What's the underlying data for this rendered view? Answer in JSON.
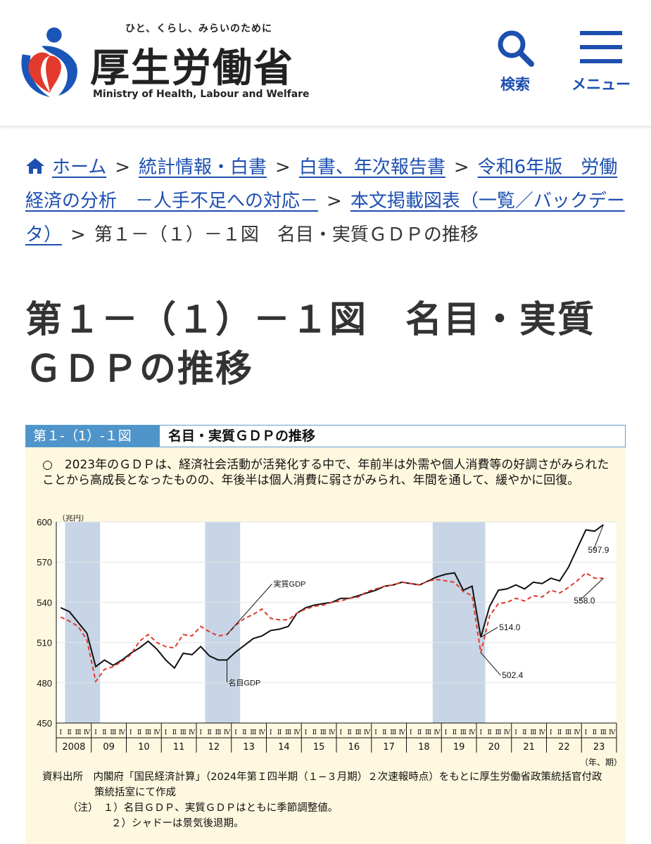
{
  "header": {
    "tagline": "ひと、くらし、みらいのために",
    "logo_text": "厚生労働省",
    "logo_en": "Ministry of Health, Labour and Welfare",
    "search_label": "検索",
    "menu_label": "メニュー",
    "accent": "#1d4fb0"
  },
  "breadcrumb": {
    "home": "ホーム",
    "sep": ">",
    "items": [
      "統計情報・白書",
      "白書、年次報告書",
      "令和6年版　労働経済の分析　－人手不足への対応－",
      "本文掲載図表（一覧／バックデータ）"
    ],
    "current": "第１－（１）－１図　名目・実質ＧＤＰの推移"
  },
  "page_title": "第１－（１）－１図　名目・実質ＧＤＰの推移",
  "figure": {
    "number": "第１-（1）-１図",
    "name": "名目・実質ＧＤＰの推移",
    "summary": "○　2023年のＧＤＰは、経済社会活動が活発化する中で、年前半は外需や個人消費等の好調さがみられたことから高成長となったものの、年後半は個人消費に弱さがみられ、年間を通して、緩やかに回復。",
    "source_label": "資料出所",
    "source_text": "内閣府「国民経済計算」（2024年第Ｉ四半期（１−３月期）２次速報時点）をもとに厚生労働省政策統括官付政",
    "source_text2": "策統括室にて作成",
    "note_label": "（注）",
    "note1": "１）名目ＧＤＰ、実質ＧＤＰはともに季節調整値。",
    "note2": "２）シャドーは景気後退期。"
  },
  "chart_data": {
    "type": "line",
    "ylabel": "（兆円）",
    "xlabel": "（年、期）",
    "ylim": [
      450,
      600
    ],
    "yticks": [
      450,
      480,
      510,
      540,
      570,
      600
    ],
    "quarter_labels": [
      "Ⅰ",
      "Ⅱ",
      "Ⅲ",
      "Ⅳ"
    ],
    "years": [
      "2008",
      "09",
      "10",
      "11",
      "12",
      "13",
      "14",
      "15",
      "16",
      "17",
      "18",
      "19",
      "20",
      "21",
      "22",
      "23"
    ],
    "recessions": [
      [
        1,
        4
      ],
      [
        17,
        20
      ],
      [
        43,
        48
      ]
    ],
    "series": [
      {
        "name": "名目GDP",
        "color": "#111111",
        "dash": false,
        "values": [
          536,
          533,
          525,
          517,
          492,
          497,
          493,
          497,
          502,
          506,
          511,
          505,
          497,
          491,
          502,
          501,
          507,
          500,
          497,
          497,
          503,
          508,
          513,
          515,
          519,
          520,
          522,
          532,
          536,
          538,
          539,
          540,
          543,
          543,
          545,
          547,
          549,
          552,
          553,
          555,
          554,
          553,
          556,
          559,
          561,
          562,
          549,
          552,
          514,
          537,
          549,
          550,
          553,
          550,
          555,
          554,
          558,
          556,
          566,
          580,
          594,
          593,
          597.9
        ]
      },
      {
        "name": "実質GDP",
        "color": "#e03a2f",
        "dash": true,
        "values": [
          529,
          526,
          522,
          512,
          481,
          490,
          492,
          496,
          501,
          511,
          516,
          510,
          507,
          506,
          516,
          515,
          522,
          518,
          515,
          516,
          523,
          528,
          531,
          535,
          528,
          527,
          527,
          532,
          535,
          537,
          538,
          540,
          541,
          543,
          544,
          548,
          550,
          552,
          553,
          555,
          554,
          553,
          556,
          557,
          556,
          555,
          548,
          545,
          502.4,
          530,
          539,
          540,
          543,
          541,
          545,
          544,
          549,
          547,
          551,
          556,
          562,
          558,
          558
        ]
      }
    ],
    "annotations": [
      {
        "text": "597.9"
      },
      {
        "text": "558.0"
      },
      {
        "text": "514.0"
      },
      {
        "text": "502.4"
      },
      {
        "text": "実質GDP"
      },
      {
        "text": "名目GDP"
      }
    ],
    "grid": "horizontal",
    "legend": "inline-labels"
  }
}
